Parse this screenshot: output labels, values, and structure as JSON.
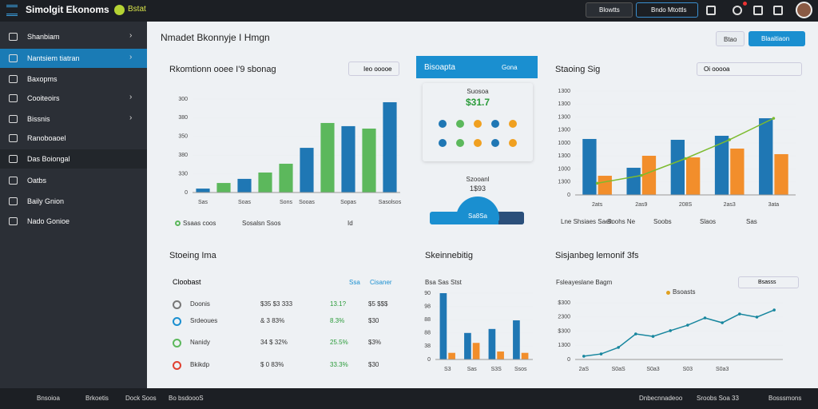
{
  "topbar": {
    "brand": "Simolgit Ekonoms",
    "badge": "Bstat",
    "select": "Blowtts",
    "button": "Bndo Mtottls"
  },
  "sidebar": {
    "items": [
      "Shanbiam",
      "Nantsiem tiatran",
      "Baxopms",
      "Cooiteoirs",
      "Bissnis",
      "Ranoboaoel",
      "Das Boiongal",
      "Oatbs",
      "Baily Gnion",
      "Nado Gonioe"
    ],
    "active": 1
  },
  "page": {
    "title": "Nmadet Bkonnyje I Hmgn",
    "buttons": [
      "Btao",
      "Blaaitiaon"
    ]
  },
  "card_a": {
    "title": "Rkomtionn ooee I'9 sbonag",
    "search": "Ieo ooooe",
    "legend": [
      "Ssaas coos",
      "Sosalsn Ssos",
      "Id"
    ],
    "chart": {
      "type": "bar",
      "categories": [
        "Sas",
        null,
        "Soas",
        null,
        "Sons",
        "Sooas",
        null,
        "Sopas",
        null,
        "Sasolsos"
      ],
      "values": [
        21,
        51,
        73,
        107,
        154,
        239,
        372,
        355,
        342,
        483
      ],
      "colors": [
        "#1f77b4",
        "#5cb85c",
        "#1f77b4",
        "#5cb85c",
        "#5cb85c",
        "#1f77b4",
        "#5cb85c",
        "#1f77b4",
        "#5cb85c",
        "#1f77b4"
      ],
      "ylim": [
        0,
        500
      ],
      "yticks": [
        0,
        {
          "value": 100,
          "label": "330"
        },
        {
          "value": 200,
          "label": "380"
        },
        {
          "value": 300,
          "label": "350"
        },
        {
          "value": 400,
          "label": "380"
        },
        {
          "value": 500,
          "label": "300"
        }
      ]
    }
  },
  "card_b": {
    "title": "Bisoapta",
    "link": "Gona",
    "stat_label": "Suosoa",
    "stat_value": "$31.7",
    "sub_label": "Szooanl",
    "sub_value": "1$93",
    "gauge": "Sa8Sa"
  },
  "card_c": {
    "title": "Staoing Sig",
    "dropdown": "Oi ooooa",
    "legend": [
      "Lne Shsiaes Saeh",
      "Soohs Ne",
      "Soobs",
      "Slaos",
      "Sas"
    ],
    "chart": {
      "type": "bar",
      "categories": [
        "2ats",
        "2as9",
        "208S",
        "2as3",
        "3ata"
      ],
      "series": [
        {
          "color": "#1f77b4",
          "values": [
            862,
            418,
            849,
            911,
            1181
          ]
        },
        {
          "color": "#f28e2b",
          "values": [
            295,
            603,
            578,
            714,
            628
          ]
        },
        {
          "color": "#7dbb2f",
          "type": "line",
          "values": [
            180,
            300,
            560,
            850,
            1180
          ]
        }
      ],
      "ylim": [
        0,
        1600
      ],
      "yticks": [
        0,
        {
          "value": 200,
          "label": "1300"
        },
        {
          "value": 400,
          "label": "1000"
        },
        {
          "value": 600,
          "label": "1300"
        },
        {
          "value": 800,
          "label": "1000"
        },
        {
          "value": 1000,
          "label": "1300"
        },
        {
          "value": 1200,
          "label": "1300"
        },
        {
          "value": 1400,
          "label": "1300"
        },
        {
          "value": 1600,
          "label": "1300"
        }
      ]
    }
  },
  "card_d": {
    "title": "Stoeing Ima",
    "header": [
      "Cloobast",
      "Ssa",
      "Cisaner"
    ],
    "rows": [
      [
        "Doonis",
        "$35 $3 333",
        "13.1?",
        "$5 $$$"
      ],
      [
        "Srdeoues",
        "& 3 83%",
        "8.3%",
        "$30"
      ],
      [
        "Nanidy",
        "34 $ 32%",
        "25.5%",
        "$3%"
      ],
      [
        "Bkikdp",
        "$ 0 83%",
        "33.3%",
        "$30"
      ]
    ]
  },
  "card_e": {
    "title": "Skeinnebitig",
    "legend": "Bsa Sas Stst",
    "chart": {
      "type": "bar",
      "categories": [
        "S3",
        "Sas",
        "S3S",
        "Ssos"
      ],
      "series": [
        {
          "color": "#1f77b4",
          "values": [
            100,
            40,
            46,
            59
          ]
        },
        {
          "color": "#f28e2b",
          "values": [
            10,
            25,
            12,
            10
          ]
        }
      ],
      "ylim": [
        0,
        100
      ],
      "yticks": [
        0,
        {
          "value": 20,
          "label": "38"
        },
        {
          "value": 40,
          "label": "88"
        },
        {
          "value": 60,
          "label": "88"
        },
        {
          "value": 80,
          "label": "98"
        },
        {
          "value": 100,
          "label": "90"
        }
      ]
    }
  },
  "card_f": {
    "title": "Sisjanbeg lemonif 3fs",
    "subtitle": "Fsleayeslane Bagm",
    "series_label": "Bsoasts",
    "dropdown": "Bsasss",
    "chart": {
      "type": "line",
      "categories": [
        "2aS",
        null,
        "S0aS",
        null,
        "S0a3",
        null,
        "S03",
        null,
        "S0a3",
        null,
        null,
        null
      ],
      "series": [
        {
          "color": "#17869e",
          "values": [
            23,
            39,
            85,
            180,
            163,
            203,
            242,
            293,
            259,
            321,
            299,
            349
          ]
        }
      ],
      "ylim": [
        0,
        400
      ],
      "yticks": [
        0,
        {
          "value": 100,
          "label": "1300"
        },
        {
          "value": 200,
          "label": "$300"
        },
        {
          "value": 300,
          "label": "2300"
        },
        {
          "value": 400,
          "label": "$300"
        }
      ]
    }
  },
  "footer": {
    "left": [
      "Bnsoioa",
      "Brkoetis",
      "Dock Soos",
      "Bo bsdoooS"
    ],
    "right": [
      "Dnbecnnadeoo",
      "Sroobs Soa 33",
      "Bosssmons"
    ]
  }
}
